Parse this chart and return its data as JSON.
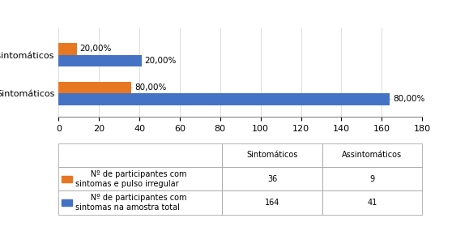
{
  "categories": [
    "Assintomáticos",
    "Sintomáticos"
  ],
  "orange_values": [
    9,
    36
  ],
  "blue_values": [
    41,
    164
  ],
  "orange_pct_labels": [
    "20,00%",
    "80,00%"
  ],
  "blue_pct_labels": [
    "20,00%",
    "80,00%"
  ],
  "orange_color": "#E87722",
  "blue_color": "#4472C4",
  "xlim": [
    0,
    180
  ],
  "xticks": [
    0,
    20,
    40,
    60,
    80,
    100,
    120,
    140,
    160,
    180
  ],
  "table_col_labels": [
    "Sintomáticos",
    "Assintomáticos"
  ],
  "table_row1": [
    "36",
    "9"
  ],
  "table_row2": [
    "164",
    "41"
  ],
  "legend_orange": "Nº de participantes com\nsintomas e pulso irregular",
  "legend_blue": "Nº de participantes com\nsintomas na amostra total",
  "background_color": "#ffffff",
  "label_fontsize": 7.5,
  "tick_fontsize": 8,
  "bar_height": 0.3
}
